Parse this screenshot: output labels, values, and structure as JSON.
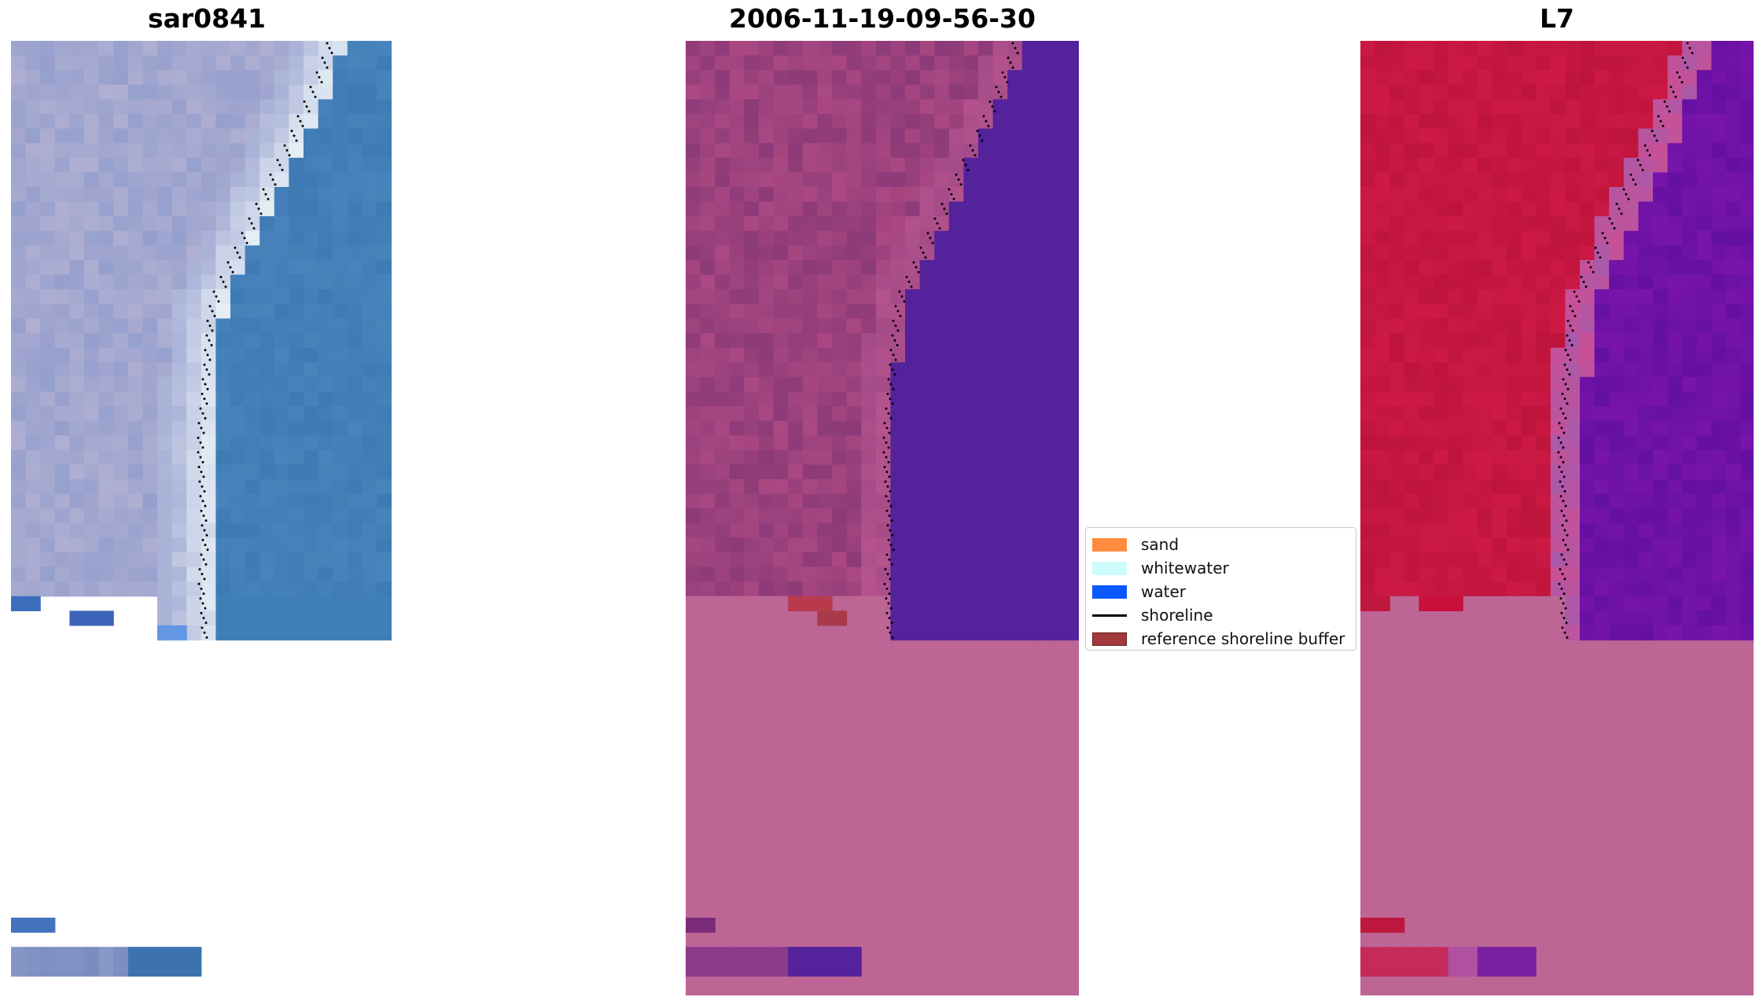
{
  "panels": [
    {
      "id": "rgb",
      "title": "sar0841"
    },
    {
      "id": "classified",
      "title": "2006-11-19-09-56-30"
    },
    {
      "id": "index",
      "title": "L7"
    }
  ],
  "legend": {
    "items": [
      {
        "label": "sand",
        "color": "#ff8c3c",
        "kind": "patch"
      },
      {
        "label": "whitewater",
        "color": "#ccfcfc",
        "kind": "patch"
      },
      {
        "label": "water",
        "color": "#0a58ff",
        "kind": "patch"
      },
      {
        "label": "shoreline",
        "color": "#000000",
        "kind": "line"
      },
      {
        "label": "reference shoreline buffer",
        "color": "#a03a3c",
        "kind": "patch"
      }
    ]
  },
  "colors": {
    "no_data_classified": "#bd6696",
    "no_data_index": "#bd6696",
    "water_classified": "#54229a",
    "index_land": "#c0173e",
    "index_water": "#6a159c"
  }
}
